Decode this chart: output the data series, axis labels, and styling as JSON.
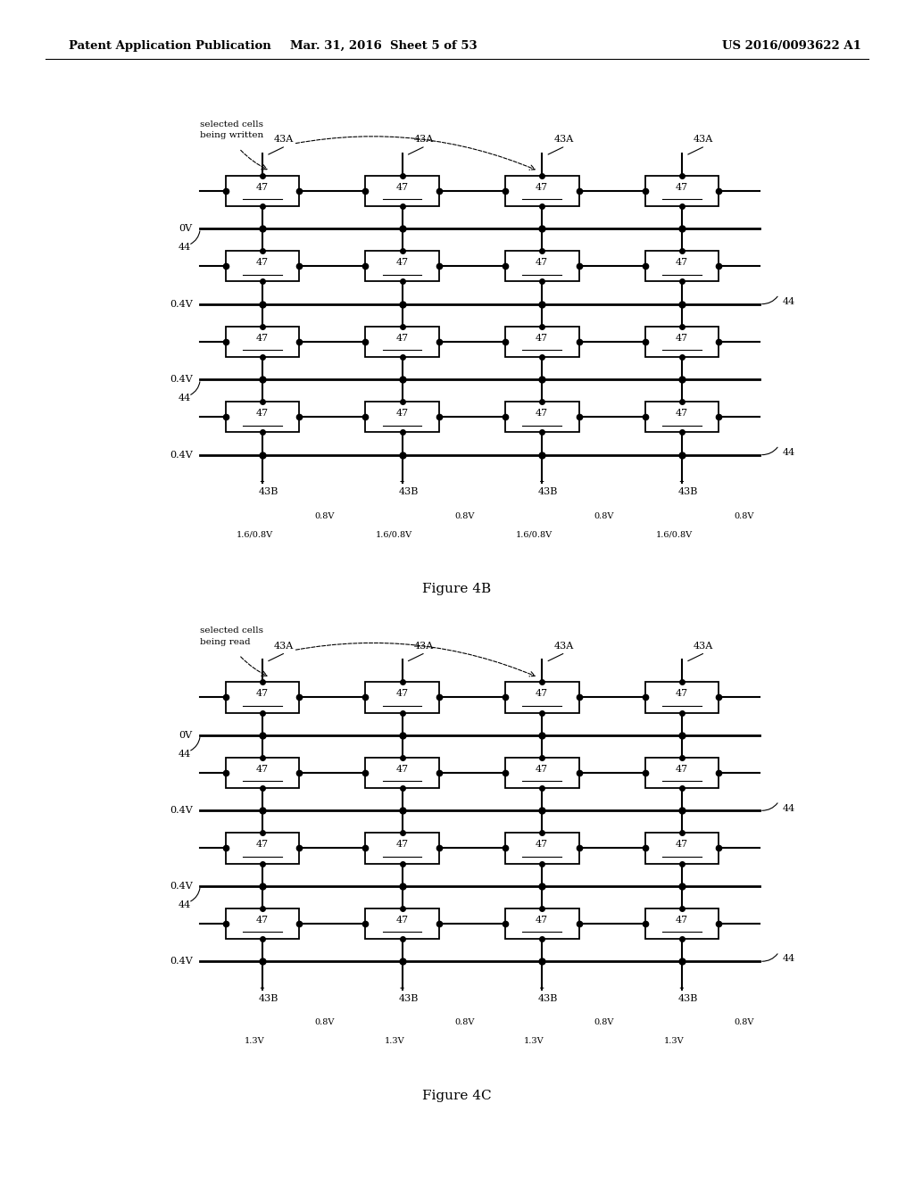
{
  "header_left": "Patent Application Publication",
  "header_mid": "Mar. 31, 2016  Sheet 5 of 53",
  "header_right": "US 2016/0093622 A1",
  "fig4b_label": "Figure 4B",
  "fig4c_label": "Figure 4C",
  "fig4b_annotation": "selected cells\nbeing written",
  "fig4c_annotation": "selected cells\nbeing read",
  "cell_label": "47",
  "bg_color": "#ffffff",
  "fig4b_col_top_voltages": [
    "1.6/0.8V",
    "1.6/0.8V",
    "1.6/0.8V",
    "1.6/0.8V"
  ],
  "fig4b_col_bot_voltages": [
    "0.8V",
    "0.8V",
    "0.8V",
    "0.8V"
  ],
  "fig4c_col_top_voltages": [
    "1.3V",
    "1.3V",
    "1.3V",
    "1.3V"
  ],
  "fig4c_col_bot_voltages": [
    "0.8V",
    "0.8V",
    "0.8V",
    "0.8V"
  ],
  "row_voltages": [
    "0V",
    "0.4V",
    "0.4V",
    "0.4V"
  ],
  "col_top_labels": [
    "43A",
    "43A",
    "43A",
    "43A"
  ],
  "col_bot_labels": [
    "43B",
    "43B",
    "43B",
    "43B"
  ]
}
